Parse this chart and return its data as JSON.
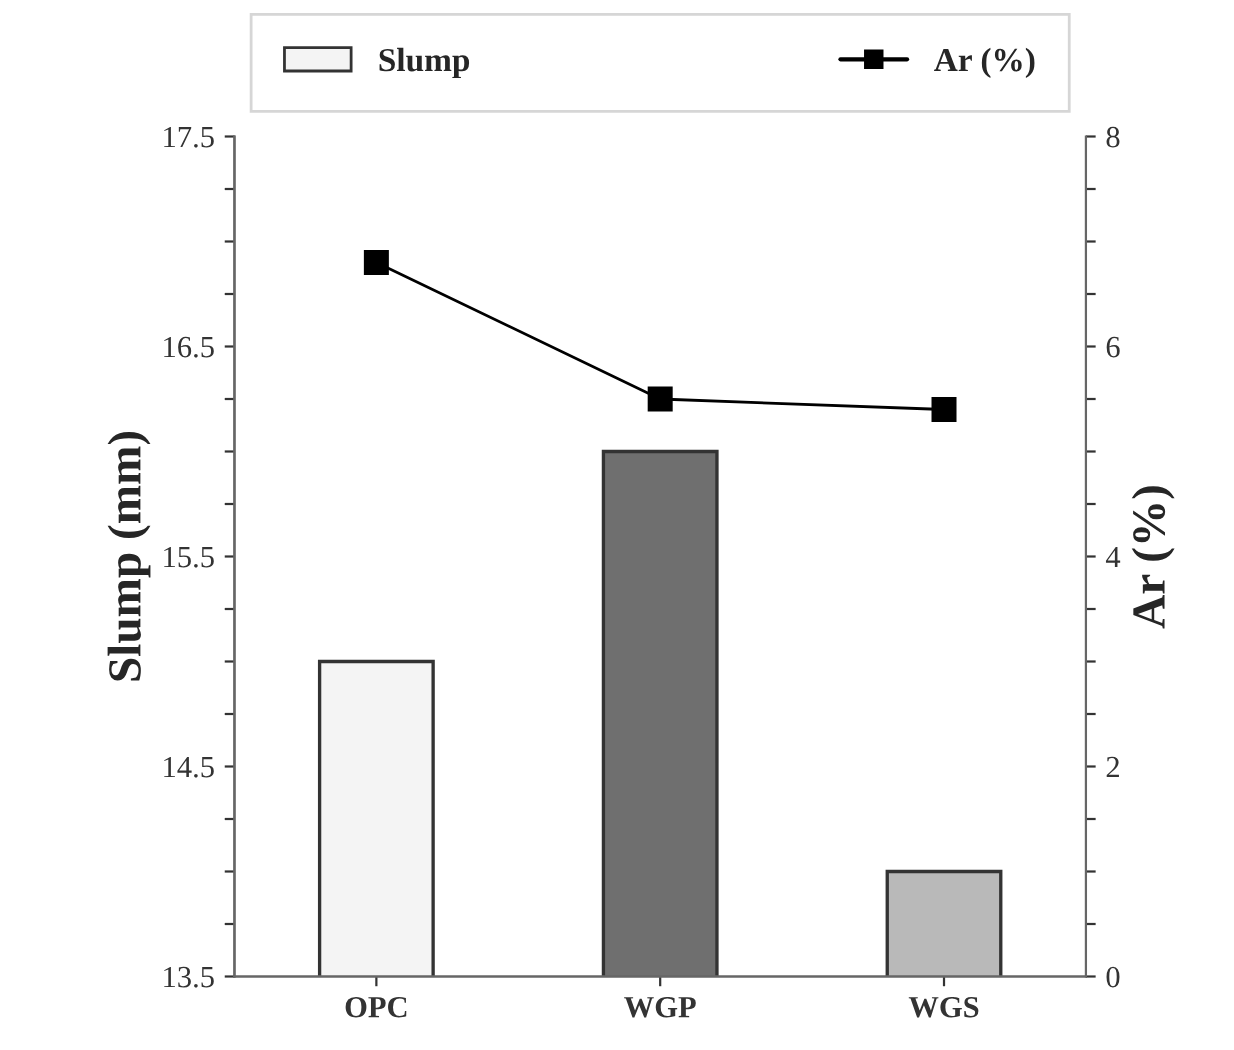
{
  "chart_data": {
    "type": "bar",
    "categories": [
      "OPC",
      "WGP",
      "WGS"
    ],
    "series": [
      {
        "name": "Slump",
        "colors": [
          "#f4f4f4",
          "#6f6f6f",
          "#b9b9b9"
        ],
        "color": "#f4f4f4",
        "values": [
          15.0,
          16.0,
          14.0
        ]
      },
      {
        "name": "Ar (%)",
        "type": "line",
        "axis": "y2",
        "color": "#000000",
        "values": [
          6.8,
          5.5,
          5.4
        ]
      }
    ],
    "ylabel": "Slump (mm)",
    "y2label": "Ar (%)",
    "ylim": [
      13.5,
      17.5
    ],
    "yticks": [
      13.5,
      {
        "value": 13.75,
        "label": null
      },
      {
        "value": 14.0,
        "label": null
      },
      {
        "value": 14.25,
        "label": null
      },
      14.5,
      {
        "value": 14.75,
        "label": null
      },
      {
        "value": 15.0,
        "label": null
      },
      {
        "value": 15.25,
        "label": null
      },
      15.5,
      {
        "value": 15.75,
        "label": null
      },
      {
        "value": 16.0,
        "label": null
      },
      {
        "value": 16.25,
        "label": null
      },
      16.5,
      {
        "value": 16.75,
        "label": null
      },
      {
        "value": 17.0,
        "label": null
      },
      {
        "value": 17.25,
        "label": null
      },
      17.5
    ],
    "y2lim": [
      0,
      8
    ],
    "y2ticks": [
      0,
      {
        "value": 0.5,
        "label": null
      },
      {
        "value": 1,
        "label": null
      },
      {
        "value": 1.5,
        "label": null
      },
      2,
      {
        "value": 2.5,
        "label": null
      },
      {
        "value": 3,
        "label": null
      },
      {
        "value": 3.5,
        "label": null
      },
      4,
      {
        "value": 4.5,
        "label": null
      },
      {
        "value": 5,
        "label": null
      },
      {
        "value": 5.5,
        "label": null
      },
      6,
      {
        "value": 6.5,
        "label": null
      },
      {
        "value": 7,
        "label": null
      },
      {
        "value": 7.5,
        "label": null
      },
      8
    ],
    "marker": "square",
    "line_style": "solid",
    "legend": "top",
    "grid": false
  }
}
